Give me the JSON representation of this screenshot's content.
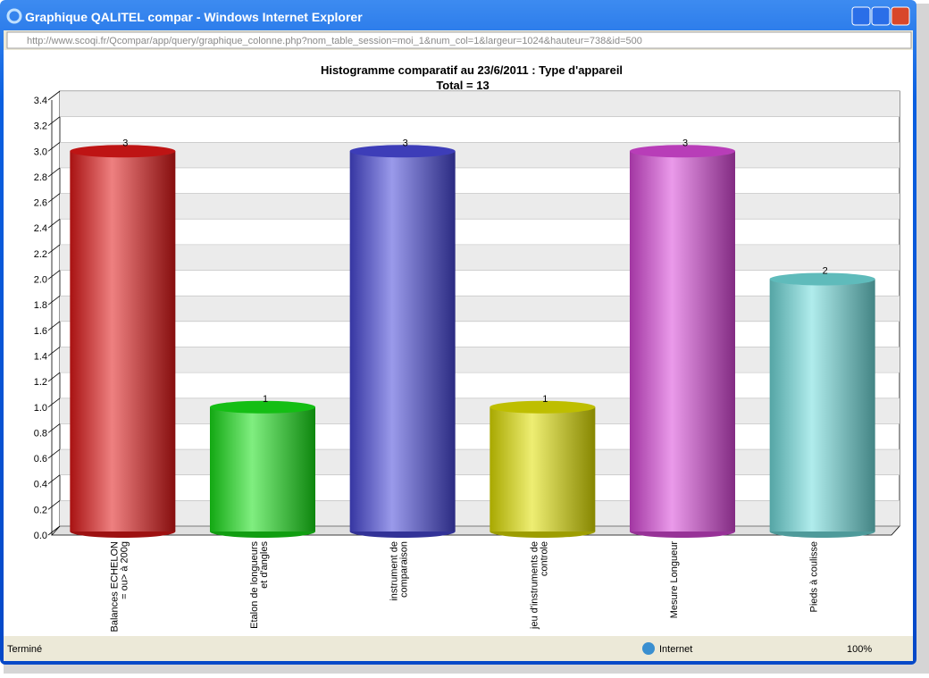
{
  "window": {
    "title": "Graphique QALITEL compar - Windows Internet Explorer",
    "url": "http://www.scoqi.fr/Qcompar/app/query/graphique_colonne.php?nom_table_session=moi_1&num_col=1&largeur=1024&hauteur=738&id=500"
  },
  "status": {
    "text": "Terminé",
    "zone": "Internet",
    "zoom": "100%"
  },
  "chart_data": {
    "type": "bar",
    "title": "Histogramme comparatif au 23/6/2011 :  Type d'appareil",
    "subtitle": "Total = 13",
    "categories": [
      "Balances ECHELON\n= ou> à 200g",
      "Etalon de longueurs\net d'angles",
      "instrument de\ncomparaison",
      "jeu d'instruments de\ncontrole",
      "Mesure Longueur",
      "Pieds à coulisse"
    ],
    "values": [
      3,
      1,
      3,
      1,
      3,
      2
    ],
    "colors": [
      "#e01818",
      "#18e018",
      "#4848d8",
      "#e0e000",
      "#d848d8",
      "#70dcdc"
    ],
    "ylim": [
      0,
      3.4
    ],
    "yticks": [
      {
        "value": 0,
        "label": "0.0"
      },
      0.2,
      0.4,
      0.6,
      0.8,
      {
        "value": 1,
        "label": "1.0"
      },
      1.2,
      1.4,
      1.6,
      1.8,
      {
        "value": 2,
        "label": "2.0"
      },
      2.2,
      2.4,
      2.6,
      2.8,
      {
        "value": 3,
        "label": "3.0"
      },
      3.2,
      3.4
    ],
    "grid": true
  }
}
